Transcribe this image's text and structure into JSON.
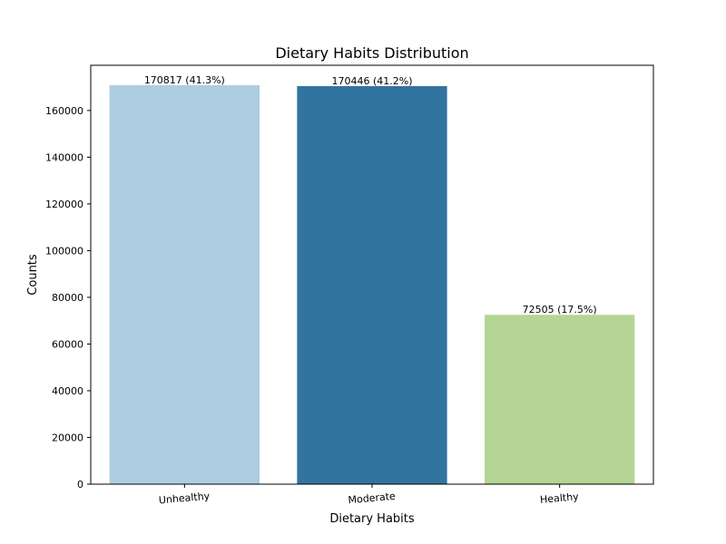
{
  "chart_data": {
    "type": "bar",
    "title": "Dietary Habits Distribution",
    "xlabel": "Dietary Habits",
    "ylabel": "Counts",
    "categories": [
      "Unhealthy",
      "Moderate",
      "Healthy"
    ],
    "values": [
      170817,
      170446,
      72505
    ],
    "data_labels": [
      "170817 (41.3%)",
      "170446 (41.2%)",
      "72505 (17.5%)"
    ],
    "colors": [
      "#aecde1",
      "#3174a2",
      "#b4d594"
    ],
    "ylim": [
      0,
      179358
    ],
    "yticks": [
      0,
      20000,
      40000,
      60000,
      80000,
      100000,
      120000,
      140000,
      160000
    ],
    "ytick_labels": [
      "0",
      "20000",
      "40000",
      "60000",
      "80000",
      "100000",
      "120000",
      "140000",
      "160000"
    ],
    "grid": false,
    "legend": "none"
  }
}
